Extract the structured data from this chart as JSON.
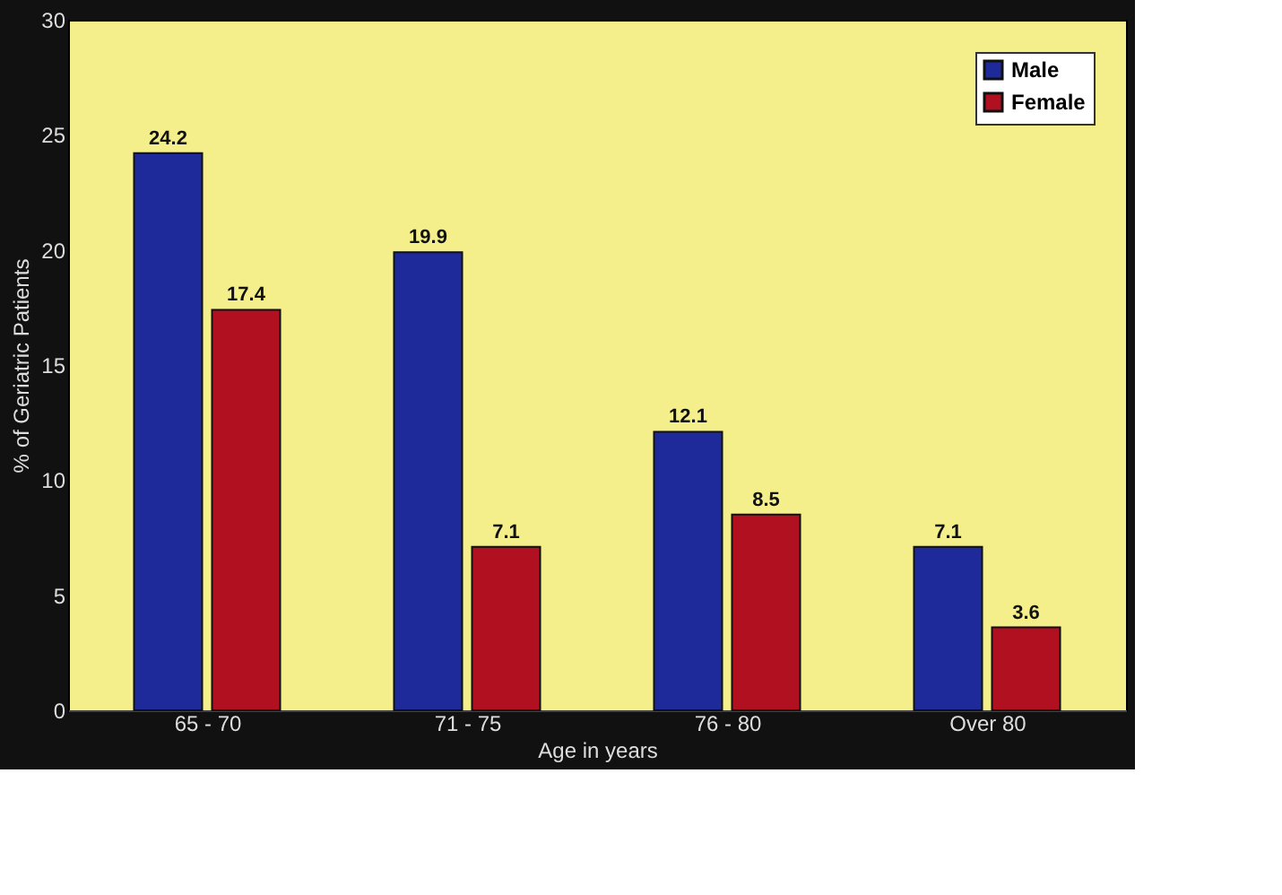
{
  "chart_data": {
    "type": "bar",
    "xlabel": "Age in years",
    "ylabel": "% of Geriatric Patients",
    "categories": [
      "65 - 70",
      "71 - 75",
      "76 - 80",
      "Over 80"
    ],
    "series": [
      {
        "name": "Male",
        "color": "#1f2a9a",
        "values": [
          24.2,
          19.9,
          12.1,
          7.1
        ]
      },
      {
        "name": "Female",
        "color": "#b01020",
        "values": [
          17.4,
          7.1,
          8.5,
          3.6
        ]
      }
    ],
    "ylim": [
      0,
      30
    ],
    "yticks": [
      0,
      5,
      10,
      15,
      20,
      25,
      30
    ],
    "data_labels": true,
    "legend": "top right",
    "grid": false
  }
}
